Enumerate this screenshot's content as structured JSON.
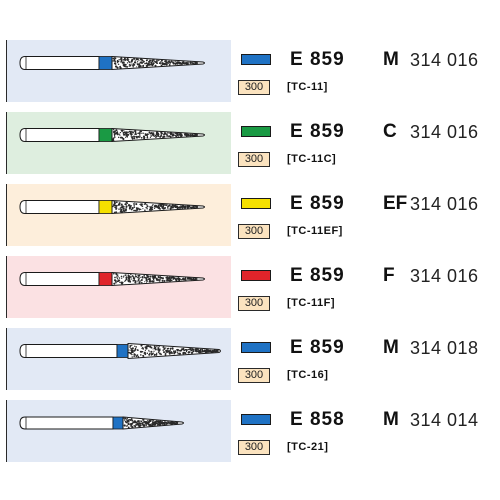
{
  "products": [
    {
      "series": "E 859",
      "grit": "M",
      "iso": "314 016",
      "pack": "300",
      "ref": "[TC-11]",
      "ring_color": "#1f72c4",
      "panel_color": "#e2e9f5",
      "head": "slender"
    },
    {
      "series": "E 859",
      "grit": "C",
      "iso": "314 016",
      "pack": "300",
      "ref": "[TC-11C]",
      "ring_color": "#1a9a44",
      "panel_color": "#deeedf",
      "head": "slender"
    },
    {
      "series": "E 859",
      "grit": "EF",
      "iso": "314 016",
      "pack": "300",
      "ref": "[TC-11EF]",
      "ring_color": "#f5e000",
      "panel_color": "#fdeedb",
      "head": "slender"
    },
    {
      "series": "E 859",
      "grit": "F",
      "iso": "314 016",
      "pack": "300",
      "ref": "[TC-11F]",
      "ring_color": "#e0242a",
      "panel_color": "#fbe1e3",
      "head": "slender"
    },
    {
      "series": "E 859",
      "grit": "M",
      "iso": "314 018",
      "pack": "300",
      "ref": "[TC-16]",
      "ring_color": "#1f72c4",
      "panel_color": "#e2e9f5",
      "head": "wide"
    },
    {
      "series": "E 858",
      "grit": "M",
      "iso": "314 014",
      "pack": "300",
      "ref": "[TC-21]",
      "ring_color": "#1f72c4",
      "panel_color": "#e2e9f5",
      "head": "short"
    }
  ]
}
